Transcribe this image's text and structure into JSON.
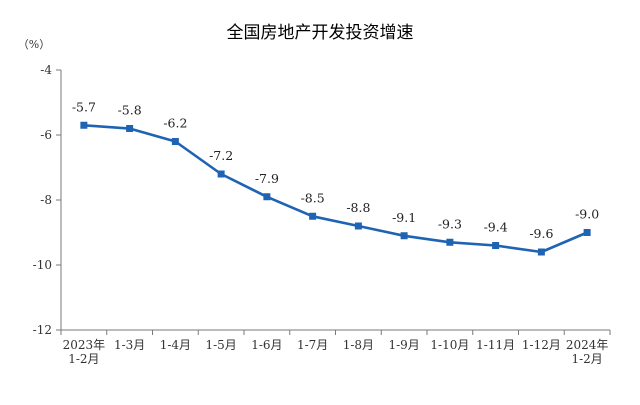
{
  "chart_data": {
    "type": "line",
    "title": "全国房地产开发投资增速",
    "ylabel": "（%）",
    "xlabel": "",
    "ylim": [
      -12,
      -4
    ],
    "yticks": [
      -4,
      -6,
      -8,
      -10,
      -12
    ],
    "categories": [
      [
        "2023年",
        "1-2月"
      ],
      [
        "1-3月"
      ],
      [
        "1-4月"
      ],
      [
        "1-5月"
      ],
      [
        "1-6月"
      ],
      [
        "1-7月"
      ],
      [
        "1-8月"
      ],
      [
        "1-9月"
      ],
      [
        "1-10月"
      ],
      [
        "1-11月"
      ],
      [
        "1-12月"
      ],
      [
        "2024年",
        "1-2月"
      ]
    ],
    "series": [
      {
        "values": [
          -5.7,
          -5.8,
          -6.2,
          -7.2,
          -7.9,
          -8.5,
          -8.8,
          -9.1,
          -9.3,
          -9.4,
          -9.6,
          -9.0
        ],
        "labels": [
          "-5.7",
          "-5.8",
          "-6.2",
          "-7.2",
          "-7.9",
          "-8.5",
          "-8.8",
          "-9.1",
          "-9.3",
          "-9.4",
          "-9.6",
          "-9.0"
        ],
        "color": "#1f63b4"
      }
    ],
    "grid": false,
    "legend": "none"
  }
}
